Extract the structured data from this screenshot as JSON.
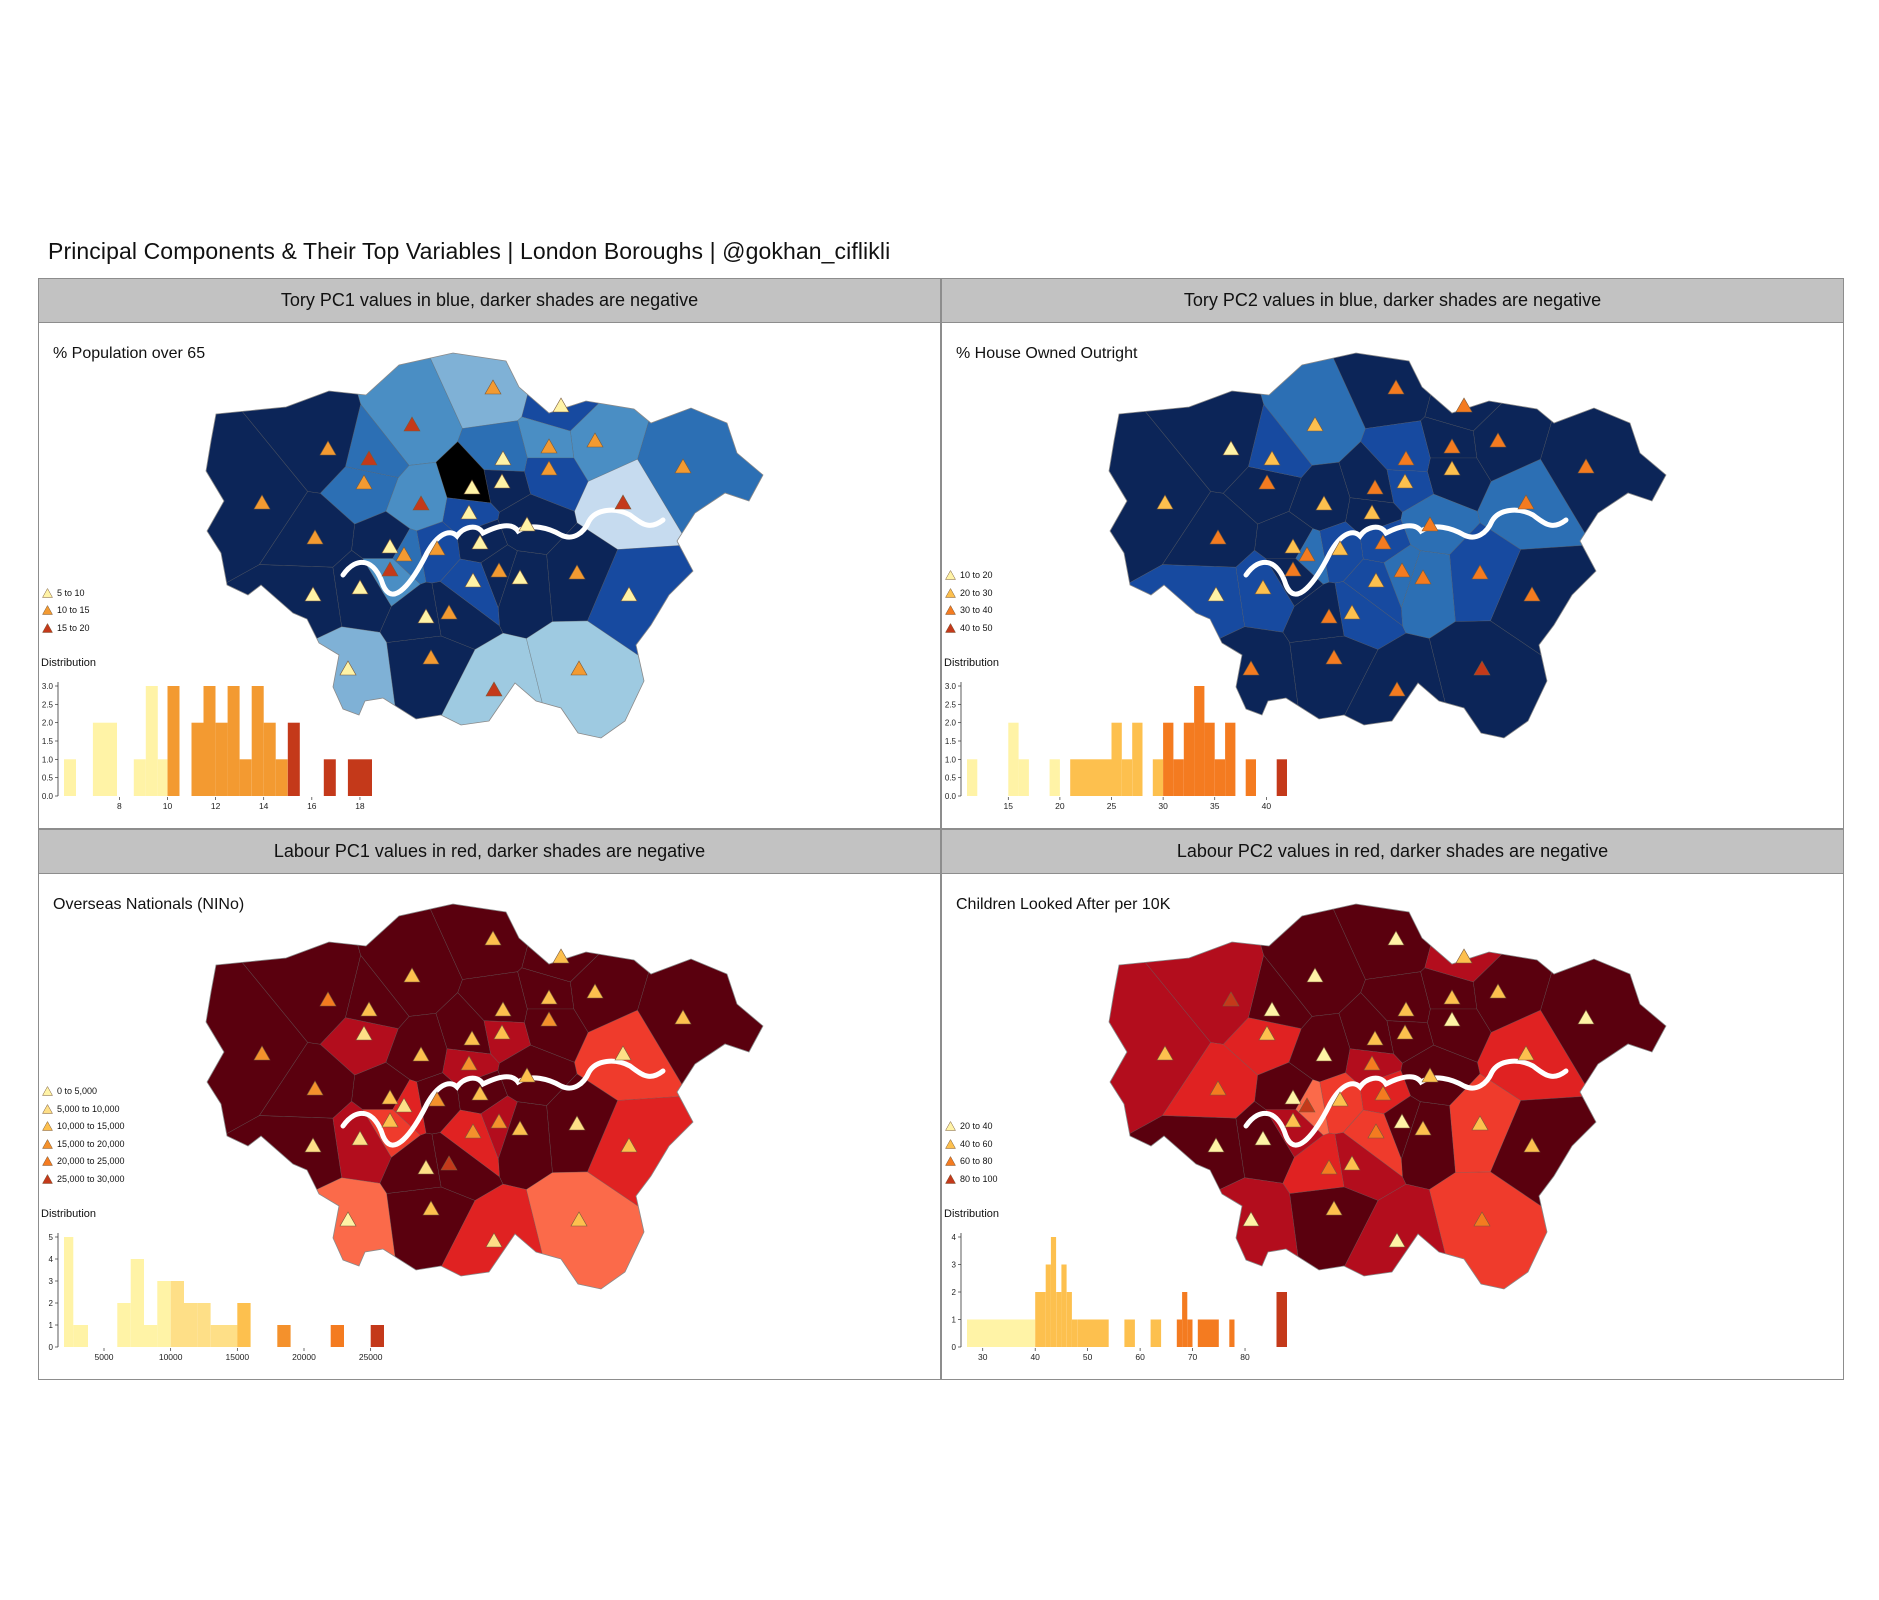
{
  "main_title": "Principal Components & Their Top Variables  |  London Boroughs | @gokhan_ciflikli",
  "dist_label": "Distribution",
  "panels": [
    {
      "header": "Tory PC1 values in blue, darker shades are negative",
      "variable": "% Population over 65",
      "scheme": "blue",
      "fills": [
        4,
        3,
        2,
        5,
        0,
        4,
        3,
        3,
        5,
        4,
        6,
        7,
        5,
        3,
        4,
        6,
        6,
        6,
        6,
        6,
        6,
        5,
        6,
        6,
        6,
        6,
        6,
        5,
        6,
        2,
        6,
        1,
        1,
        5,
        6,
        4,
        3
      ],
      "symbol_colors": [
        "#fff3a6",
        "#f39a31",
        "#c4391a"
      ],
      "legend": [
        "5 to 10",
        "10 to 15",
        "15 to 20"
      ],
      "markers": [
        1,
        2,
        1,
        0,
        2,
        1,
        1,
        1,
        1,
        0,
        0,
        0,
        0,
        2,
        2,
        1,
        1,
        1,
        0,
        0,
        0,
        1,
        0,
        1,
        1,
        0,
        0,
        0,
        0,
        0,
        1,
        2,
        1,
        0,
        1,
        1,
        2
      ],
      "histogram": {
        "x_ticks": [
          "8",
          "10",
          "12",
          "14",
          "16",
          "18"
        ],
        "x_tick_values": [
          8,
          10,
          12,
          14,
          16,
          18
        ],
        "y_ticks": [
          "0.0",
          "0.5",
          "1.0",
          "1.5",
          "2.0",
          "2.5",
          "3.0"
        ],
        "ymax": 3,
        "xmin": 5.7,
        "xmax": 19.0,
        "bins": [
          [
            5.7,
            6.2,
            1,
            0
          ],
          [
            6.9,
            7.9,
            2,
            0
          ],
          [
            8.6,
            9.1,
            1,
            0
          ],
          [
            9.1,
            9.6,
            3,
            0
          ],
          [
            9.6,
            10.0,
            1,
            0
          ],
          [
            10.0,
            10.5,
            3,
            1
          ],
          [
            11.0,
            11.5,
            2,
            1
          ],
          [
            11.5,
            12.0,
            3,
            1
          ],
          [
            12.0,
            12.5,
            2,
            1
          ],
          [
            12.5,
            13.0,
            3,
            1
          ],
          [
            13.0,
            13.5,
            1,
            1
          ],
          [
            13.5,
            14.0,
            3,
            1
          ],
          [
            14.0,
            14.5,
            2,
            1
          ],
          [
            14.5,
            15.0,
            1,
            1
          ],
          [
            15.0,
            15.5,
            2,
            2
          ],
          [
            16.5,
            17.0,
            1,
            2
          ],
          [
            17.5,
            18.5,
            1,
            2
          ]
        ]
      }
    },
    {
      "header": "Tory PC2 values in blue, darker shades are negative",
      "variable": "% House Owned Outright",
      "scheme": "blue",
      "fills": [
        6,
        4,
        6,
        6,
        4,
        6,
        6,
        6,
        6,
        5,
        5,
        6,
        6,
        6,
        5,
        6,
        6,
        6,
        5,
        5,
        6,
        5,
        5,
        4,
        5,
        4,
        4,
        5,
        6,
        6,
        6,
        6,
        6,
        6,
        5,
        4,
        6
      ],
      "symbol_colors": [
        "#fff3a6",
        "#fdc04e",
        "#f47b20",
        "#c4391a"
      ],
      "legend": [
        "10 to 20",
        "20 to 30",
        "30 to 40",
        "40 to 50"
      ],
      "markers": [
        2,
        1,
        2,
        2,
        2,
        2,
        2,
        2,
        1,
        2,
        1,
        2,
        1,
        1,
        1,
        0,
        1,
        2,
        0,
        1,
        1,
        1,
        2,
        2,
        1,
        2,
        2,
        1,
        2,
        2,
        2,
        2,
        3,
        2,
        2,
        2,
        2
      ],
      "histogram": {
        "x_ticks": [
          "15",
          "20",
          "25",
          "30",
          "35",
          "40"
        ],
        "x_tick_values": [
          15,
          20,
          25,
          30,
          35,
          40
        ],
        "y_ticks": [
          "0.0",
          "0.5",
          "1.0",
          "1.5",
          "2.0",
          "2.5",
          "3.0"
        ],
        "ymax": 3,
        "xmin": 11.0,
        "xmax": 42.0,
        "bins": [
          [
            11.0,
            12.0,
            1,
            0
          ],
          [
            15.0,
            16.0,
            2,
            0
          ],
          [
            16.0,
            17.0,
            1,
            0
          ],
          [
            19.0,
            20.0,
            1,
            0
          ],
          [
            21.0,
            25.0,
            1,
            1
          ],
          [
            25.0,
            26.0,
            2,
            1
          ],
          [
            26.0,
            27.0,
            1,
            1
          ],
          [
            27.0,
            28.0,
            2,
            1
          ],
          [
            29.0,
            30.0,
            1,
            1
          ],
          [
            30.0,
            31.0,
            2,
            2
          ],
          [
            31.0,
            32.0,
            1,
            2
          ],
          [
            32.0,
            33.0,
            2,
            2
          ],
          [
            33.0,
            34.0,
            3,
            2
          ],
          [
            34.0,
            35.0,
            2,
            2
          ],
          [
            35.0,
            36.0,
            1,
            2
          ],
          [
            36.0,
            37.0,
            2,
            2
          ],
          [
            38.0,
            39.0,
            1,
            2
          ],
          [
            41.0,
            42.0,
            1,
            3
          ]
        ]
      }
    },
    {
      "header": "Labour PC1 values in red, darker shades are negative",
      "variable": "Overseas Nationals (NINo)",
      "scheme": "red",
      "fills": [
        5,
        6,
        6,
        6,
        3,
        6,
        6,
        6,
        6,
        6,
        5,
        6,
        5,
        6,
        6,
        6,
        6,
        6,
        6,
        5,
        6,
        6,
        6,
        5,
        6,
        6,
        6,
        4,
        6,
        2,
        6,
        4,
        2,
        4,
        6,
        4,
        3
      ],
      "symbol_colors": [
        "#fff3a6",
        "#fedf87",
        "#fdc04e",
        "#f4912c",
        "#f47b20",
        "#c4391a"
      ],
      "legend": [
        "0 to 5,000",
        "5,000 to 10,000",
        "10,000 to 15,000",
        "15,000 to 20,000",
        "20,000 to 25,000",
        "25,000 to 30,000"
      ],
      "markers": [
        1,
        2,
        2,
        2,
        1,
        2,
        2,
        2,
        3,
        2,
        2,
        2,
        3,
        2,
        2,
        4,
        3,
        3,
        1,
        1,
        2,
        3,
        2,
        3,
        5,
        2,
        2,
        3,
        1,
        0,
        2,
        1,
        2,
        2,
        1,
        1,
        2
      ],
      "histogram": {
        "x_ticks": [
          "5000",
          "10000",
          "15000",
          "20000",
          "25000"
        ],
        "x_tick_values": [
          5000,
          10000,
          15000,
          20000,
          25000
        ],
        "y_ticks": [
          "0",
          "1",
          "2",
          "3",
          "4",
          "5"
        ],
        "ymax": 5,
        "xmin": 2000,
        "xmax": 26000,
        "bins": [
          [
            2000,
            2700,
            5,
            0
          ],
          [
            2700,
            3800,
            1,
            0
          ],
          [
            6000,
            7000,
            2,
            0
          ],
          [
            7000,
            8000,
            4,
            0
          ],
          [
            8000,
            9000,
            1,
            0
          ],
          [
            9000,
            10000,
            3,
            0
          ],
          [
            10000,
            11000,
            3,
            1
          ],
          [
            11000,
            12000,
            2,
            1
          ],
          [
            12000,
            13000,
            2,
            1
          ],
          [
            13000,
            15000,
            1,
            1
          ],
          [
            15000,
            16000,
            2,
            2
          ],
          [
            18000,
            19000,
            1,
            3
          ],
          [
            22000,
            23000,
            1,
            4
          ],
          [
            25000,
            26000,
            1,
            5
          ]
        ]
      }
    },
    {
      "header": "Labour PC2 values in red, darker shades are negative",
      "variable": "Children Looked After per 10K",
      "scheme": "red",
      "fills": [
        4,
        6,
        6,
        5,
        4,
        6,
        6,
        6,
        6,
        6,
        6,
        6,
        5,
        6,
        6,
        5,
        5,
        4,
        6,
        6,
        6,
        3,
        4,
        6,
        5,
        6,
        6,
        3,
        4,
        5,
        6,
        5,
        3,
        6,
        3,
        2,
        5
      ],
      "symbol_colors": [
        "#fff3a6",
        "#fdc04e",
        "#f47b20",
        "#c4391a"
      ],
      "legend": [
        "20 to 40",
        "40 to 60",
        "60 to 80",
        "80 to 100"
      ],
      "markers": [
        1,
        0,
        0,
        1,
        1,
        0,
        1,
        1,
        0,
        1,
        1,
        1,
        2,
        0,
        0,
        3,
        1,
        2,
        0,
        0,
        0,
        1,
        2,
        0,
        1,
        1,
        1,
        2,
        2,
        0,
        1,
        0,
        2,
        1,
        1,
        3,
        1
      ],
      "histogram": {
        "x_ticks": [
          "30",
          "40",
          "50",
          "60",
          "70",
          "80"
        ],
        "x_tick_values": [
          30,
          40,
          50,
          60,
          70,
          80
        ],
        "y_ticks": [
          "0",
          "1",
          "2",
          "3",
          "4"
        ],
        "ymax": 4,
        "xmin": 27.0,
        "xmax": 88.0,
        "bins": [
          [
            27.0,
            40.0,
            1,
            0
          ],
          [
            40.0,
            42.0,
            2,
            1
          ],
          [
            42.0,
            43.0,
            3,
            1
          ],
          [
            43.0,
            44.0,
            4,
            1
          ],
          [
            44.0,
            45.0,
            2,
            1
          ],
          [
            45.0,
            46.0,
            3,
            1
          ],
          [
            46.0,
            47.0,
            2,
            1
          ],
          [
            47.0,
            48.0,
            1,
            1
          ],
          [
            48.0,
            54.0,
            1,
            1
          ],
          [
            57.0,
            59.0,
            1,
            1
          ],
          [
            62.0,
            64.0,
            1,
            1
          ],
          [
            67.0,
            68.0,
            1,
            2
          ],
          [
            68.0,
            69.0,
            2,
            2
          ],
          [
            69.0,
            70.0,
            1,
            2
          ],
          [
            71.0,
            75.0,
            1,
            2
          ],
          [
            77.0,
            78.0,
            1,
            2
          ],
          [
            86.0,
            88.0,
            2,
            3
          ]
        ]
      }
    }
  ],
  "palettes": {
    "blue": [
      "#c6dbef",
      "#9ecae1",
      "#7fb1d6",
      "#4a8ec4",
      "#2c6fb4",
      "#174aa0",
      "#0c2558"
    ],
    "red": [
      "#fcbba1",
      "#fc9272",
      "#fb6a4a",
      "#ef3b2c",
      "#e02222",
      "#b30d1d",
      "#5a000e"
    ]
  }
}
